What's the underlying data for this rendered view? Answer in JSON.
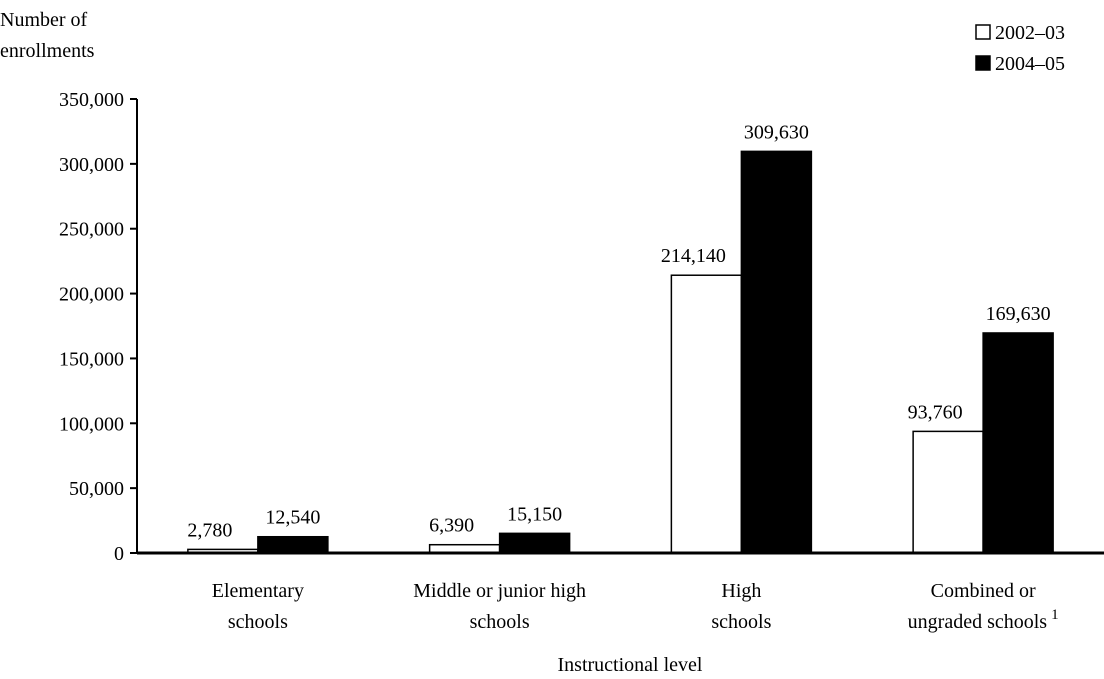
{
  "chart_data": {
    "type": "bar",
    "title": "",
    "ylabel_lines": [
      "Number of",
      "enrollments"
    ],
    "xlabel": "Instructional level",
    "ylim": [
      0,
      350000
    ],
    "yticks": [
      0,
      50000,
      100000,
      150000,
      200000,
      250000,
      300000,
      350000
    ],
    "ytick_labels": [
      "0",
      "50,000",
      "100,000",
      "150,000",
      "200,000",
      "250,000",
      "300,000",
      "350,000"
    ],
    "categories": [
      {
        "lines": [
          "Elementary",
          "schools"
        ],
        "footnote": ""
      },
      {
        "lines": [
          "Middle or junior high",
          "schools"
        ],
        "footnote": ""
      },
      {
        "lines": [
          "High",
          "schools"
        ],
        "footnote": ""
      },
      {
        "lines": [
          "Combined or",
          "ungraded schools"
        ],
        "footnote": "1"
      }
    ],
    "series": [
      {
        "name": "2002–03",
        "color": "#ffffff",
        "values": [
          2780,
          6390,
          214140,
          93760
        ],
        "labels": [
          "2,780",
          "6,390",
          "214,140",
          "93,760"
        ]
      },
      {
        "name": "2004–05",
        "color": "#000000",
        "values": [
          12540,
          15150,
          309630,
          169630
        ],
        "labels": [
          "12,540",
          "15,150",
          "309,630",
          "169,630"
        ]
      }
    ],
    "legend_position": "top-right",
    "grid": false
  }
}
